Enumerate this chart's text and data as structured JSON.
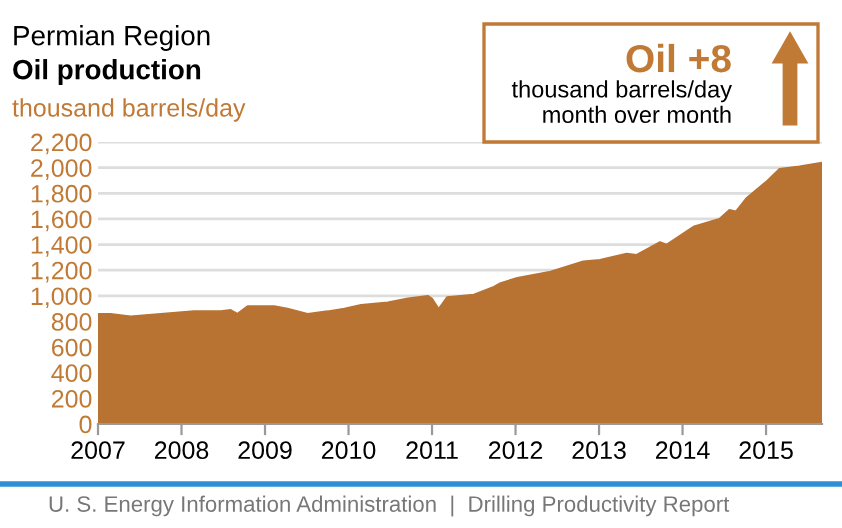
{
  "chart_data": {
    "type": "area",
    "title": "Permian Region",
    "subtitle": "Oil production",
    "ylabel": "thousand barrels/day",
    "x": [
      2007.0,
      2007.15,
      2007.39,
      2007.75,
      2008.15,
      2008.47,
      2008.59,
      2008.67,
      2008.79,
      2009.11,
      2009.27,
      2009.51,
      2009.75,
      2009.95,
      2010.15,
      2010.47,
      2010.71,
      2010.95,
      2011.0,
      2011.08,
      2011.18,
      2011.5,
      2011.74,
      2011.82,
      2012.02,
      2012.42,
      2012.81,
      2013.01,
      2013.33,
      2013.45,
      2013.73,
      2013.81,
      2014.13,
      2014.44,
      2014.56,
      2014.64,
      2014.76,
      2015.0,
      2015.16,
      2015.4,
      2015.67
    ],
    "values": [
      860,
      860,
      840,
      860,
      880,
      880,
      890,
      860,
      920,
      920,
      900,
      860,
      880,
      900,
      930,
      950,
      980,
      1000,
      980,
      900,
      990,
      1010,
      1070,
      1100,
      1140,
      1190,
      1270,
      1280,
      1330,
      1320,
      1420,
      1400,
      1540,
      1600,
      1670,
      1660,
      1760,
      1890,
      1990,
      2010,
      2040
    ],
    "color": "#b87333",
    "xlim": [
      2007,
      2015.67
    ],
    "xticks": [
      2007,
      2008,
      2009,
      2010,
      2011,
      2012,
      2013,
      2014,
      2015
    ],
    "ylim": [
      0,
      2200
    ],
    "yticks": [
      {
        "value": 0,
        "label": "0"
      },
      {
        "value": 200,
        "label": "200"
      },
      {
        "value": 400,
        "label": "400"
      },
      {
        "value": 600,
        "label": "600"
      },
      {
        "value": 800,
        "label": "800"
      },
      {
        "value": 1000,
        "label": "1,000"
      },
      {
        "value": 1200,
        "label": "1,200"
      },
      {
        "value": 1400,
        "label": "1,400"
      },
      {
        "value": 1600,
        "label": "1,600"
      },
      {
        "value": 1800,
        "label": "1,800"
      },
      {
        "value": 2000,
        "label": "2,000"
      },
      {
        "value": 2200,
        "label": "2,200"
      }
    ],
    "grid": "y",
    "annotations": [
      "Oil +8",
      "thousand barrels/day\nmonth over month",
      "U. S. Energy Information Administration  |  Drilling Productivity Report"
    ]
  }
}
